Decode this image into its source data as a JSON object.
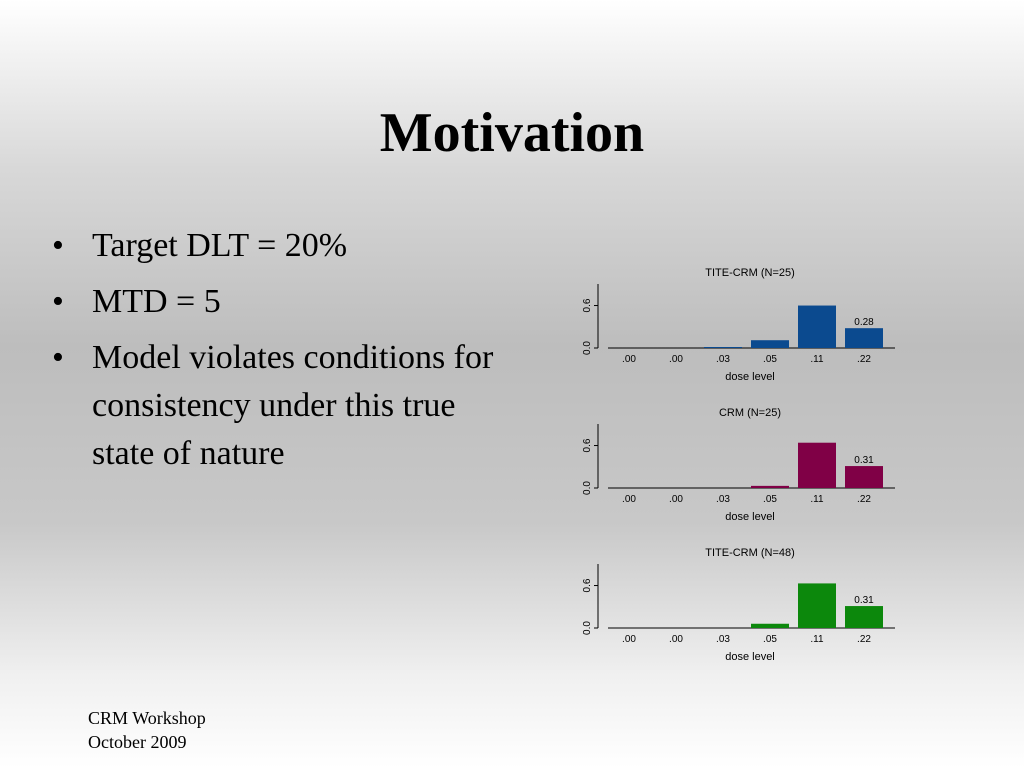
{
  "slide": {
    "title": "Motivation",
    "bullets": [
      "Target DLT = 20%",
      "MTD = 5",
      "Model violates conditions for consistency under this true state of nature"
    ],
    "footer_line1": "CRM Workshop",
    "footer_line2": "October 2009"
  },
  "chart_data": [
    {
      "type": "bar",
      "title": "TITE-CRM (N=25)",
      "xlabel": "dose level",
      "ylabel": "",
      "categories": [
        ".00",
        ".00",
        ".03",
        ".05",
        ".11",
        ".22"
      ],
      "values": [
        0.0,
        0.0,
        0.01,
        0.11,
        0.6,
        0.28
      ],
      "annotation": "0.28",
      "yticks": [
        "0.0",
        "0.6"
      ],
      "ylim": [
        0,
        0.65
      ],
      "color": "#0b4a8f"
    },
    {
      "type": "bar",
      "title": "CRM (N=25)",
      "xlabel": "dose level",
      "ylabel": "",
      "categories": [
        ".00",
        ".00",
        ".03",
        ".05",
        ".11",
        ".22"
      ],
      "values": [
        0.0,
        0.0,
        0.0,
        0.03,
        0.64,
        0.31
      ],
      "annotation": "0.31",
      "yticks": [
        "0.0",
        "0.6"
      ],
      "ylim": [
        0,
        0.65
      ],
      "color": "#800046"
    },
    {
      "type": "bar",
      "title": "TITE-CRM (N=48)",
      "xlabel": "dose level",
      "ylabel": "",
      "categories": [
        ".00",
        ".00",
        ".03",
        ".05",
        ".11",
        ".22"
      ],
      "values": [
        0.0,
        0.0,
        0.0,
        0.06,
        0.63,
        0.31
      ],
      "annotation": "0.31",
      "yticks": [
        "0.0",
        "0.6"
      ],
      "ylim": [
        0,
        0.65
      ],
      "color": "#0c880c"
    }
  ]
}
